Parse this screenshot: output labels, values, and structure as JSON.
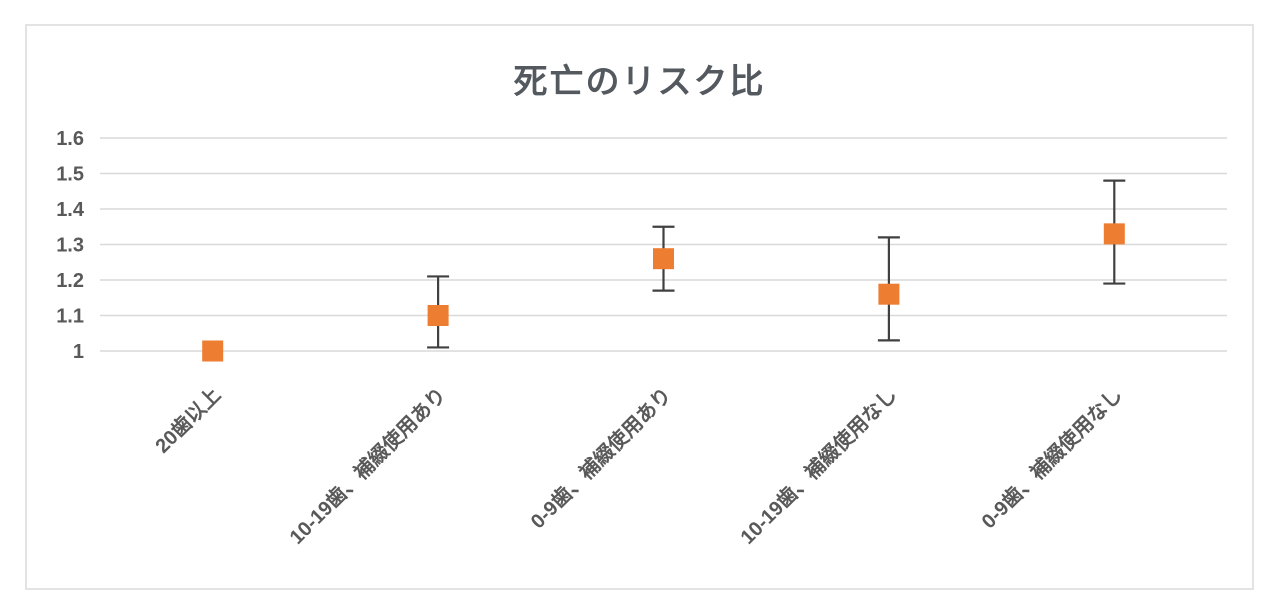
{
  "chart_data": {
    "type": "scatter",
    "title": "死亡のリスク比",
    "categories": [
      "20歯以上",
      "10-19歯、補綴使用あり",
      "0-9歯、補綴使用あり",
      "10-19歯、補綴使用なし",
      "0-9歯、補綴使用なし"
    ],
    "series": [
      {
        "name": "死亡のリスク比",
        "values": [
          1.0,
          1.1,
          1.26,
          1.16,
          1.33
        ],
        "ci_lower": [
          null,
          1.01,
          1.17,
          1.03,
          1.19
        ],
        "ci_upper": [
          null,
          1.21,
          1.35,
          1.32,
          1.48
        ]
      }
    ],
    "ylim": [
      1.0,
      1.6
    ],
    "ytick_step": 0.1,
    "ytick_labels": [
      "1",
      "1.1",
      "1.2",
      "1.3",
      "1.4",
      "1.5",
      "1.6"
    ],
    "xlabel": "",
    "ylabel": "",
    "grid": "horizontal-only",
    "legend": "none",
    "marker_shape": "square",
    "colors": {
      "marker": "#ED7D31",
      "error_bar": "#404040",
      "gridline": "#D9D9D9",
      "axis_text": "#595959",
      "title_text": "#54595f",
      "frame_border": "#e3e3e3",
      "background": "#ffffff"
    }
  }
}
